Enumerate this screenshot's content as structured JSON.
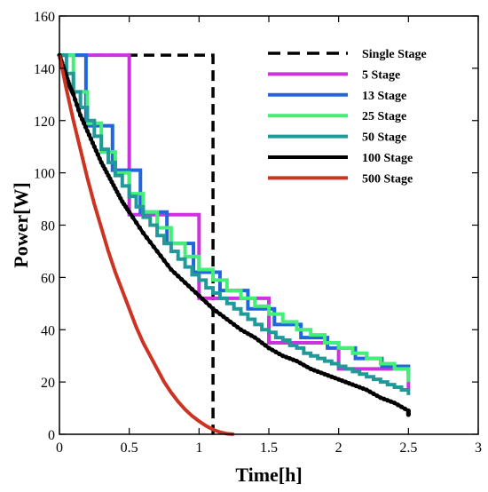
{
  "chart_data": {
    "type": "line",
    "xlabel": "Time[h]",
    "ylabel": "Power[W]",
    "xlim": [
      0,
      3
    ],
    "ylim": [
      0,
      160
    ],
    "xticks": [
      0,
      0.5,
      1,
      1.5,
      2,
      2.5,
      3
    ],
    "xtick_labels": [
      "0",
      "0.5",
      "1",
      "1.5",
      "2",
      "2.5",
      "3"
    ],
    "yticks": [
      0,
      20,
      40,
      60,
      80,
      100,
      120,
      140,
      160
    ],
    "ytick_labels": [
      "0",
      "20",
      "40",
      "60",
      "80",
      "100",
      "120",
      "140",
      "160"
    ],
    "grid": false,
    "legend_position": "top-right",
    "series": [
      {
        "name": "Single Stage",
        "color": "#000000",
        "dash": "dashed",
        "x": [
          0,
          1.1,
          1.1
        ],
        "y": [
          145,
          145,
          0
        ]
      },
      {
        "name": "5 Stage",
        "color": "#cc33dd",
        "x": [
          0,
          0.5,
          0.5,
          1.0,
          1.0,
          1.5,
          1.5,
          2.0,
          2.0,
          2.5,
          2.5
        ],
        "y": [
          145,
          145,
          84,
          84,
          52,
          52,
          35,
          35,
          25,
          25,
          17
        ]
      },
      {
        "name": "13 Stage",
        "color": "#2266dd",
        "x": [
          0,
          0.19,
          0.19,
          0.38,
          0.38,
          0.58,
          0.58,
          0.77,
          0.77,
          0.96,
          0.96,
          1.15,
          1.15,
          1.35,
          1.35,
          1.54,
          1.54,
          1.73,
          1.73,
          1.92,
          1.92,
          2.12,
          2.12,
          2.31,
          2.31,
          2.5,
          2.5
        ],
        "y": [
          145,
          145,
          118,
          118,
          101,
          101,
          85,
          85,
          73,
          73,
          62,
          62,
          55,
          55,
          48,
          48,
          42,
          42,
          37,
          37,
          33,
          33,
          29,
          29,
          26,
          26,
          23
        ]
      },
      {
        "name": "25 Stage",
        "color": "#44ee77",
        "x": [
          0,
          0.1,
          0.1,
          0.2,
          0.2,
          0.3,
          0.3,
          0.4,
          0.4,
          0.5,
          0.5,
          0.6,
          0.6,
          0.7,
          0.7,
          0.8,
          0.8,
          0.9,
          0.9,
          1.0,
          1.0,
          1.1,
          1.1,
          1.2,
          1.2,
          1.3,
          1.3,
          1.4,
          1.4,
          1.5,
          1.5,
          1.6,
          1.6,
          1.7,
          1.7,
          1.8,
          1.8,
          1.9,
          1.9,
          2.0,
          2.0,
          2.1,
          2.1,
          2.2,
          2.2,
          2.3,
          2.3,
          2.4,
          2.4,
          2.5,
          2.5
        ],
        "y": [
          145,
          145,
          131,
          131,
          119,
          119,
          108,
          108,
          100,
          100,
          92,
          92,
          85,
          85,
          79,
          79,
          73,
          73,
          68,
          68,
          63,
          63,
          59,
          59,
          55,
          55,
          52,
          52,
          49,
          49,
          46,
          46,
          43,
          43,
          40,
          40,
          38,
          38,
          35,
          35,
          33,
          33,
          31,
          31,
          29,
          29,
          27,
          27,
          25,
          25,
          20
        ]
      },
      {
        "name": "50 Stage",
        "color": "#229999",
        "x": [
          0,
          0.05,
          0.05,
          0.1,
          0.1,
          0.15,
          0.15,
          0.2,
          0.2,
          0.25,
          0.25,
          0.3,
          0.3,
          0.35,
          0.35,
          0.4,
          0.4,
          0.45,
          0.45,
          0.5,
          0.5,
          0.55,
          0.55,
          0.6,
          0.6,
          0.65,
          0.65,
          0.7,
          0.7,
          0.75,
          0.75,
          0.8,
          0.8,
          0.85,
          0.85,
          0.9,
          0.9,
          0.95,
          0.95,
          1.0,
          1.0,
          1.05,
          1.05,
          1.1,
          1.1,
          1.15,
          1.15,
          1.2,
          1.2,
          1.25,
          1.25,
          1.3,
          1.3,
          1.35,
          1.35,
          1.4,
          1.4,
          1.45,
          1.45,
          1.5,
          1.5,
          1.55,
          1.55,
          1.6,
          1.6,
          1.65,
          1.65,
          1.7,
          1.7,
          1.75,
          1.75,
          1.8,
          1.8,
          1.85,
          1.85,
          1.9,
          1.9,
          1.95,
          1.95,
          2.0,
          2.0,
          2.05,
          2.05,
          2.1,
          2.1,
          2.15,
          2.15,
          2.2,
          2.2,
          2.25,
          2.25,
          2.3,
          2.3,
          2.35,
          2.35,
          2.4,
          2.4,
          2.45,
          2.45,
          2.5,
          2.5
        ],
        "y": [
          145,
          145,
          138,
          138,
          131,
          131,
          125,
          125,
          120,
          120,
          114,
          114,
          109,
          109,
          104,
          104,
          99,
          99,
          95,
          95,
          91,
          91,
          87,
          87,
          83,
          83,
          80,
          80,
          76,
          76,
          73,
          73,
          70,
          70,
          67,
          67,
          64,
          64,
          61,
          61,
          59,
          59,
          56,
          56,
          54,
          54,
          52,
          52,
          50,
          50,
          48,
          48,
          46,
          46,
          44,
          44,
          42,
          42,
          40,
          40,
          39,
          39,
          37,
          37,
          36,
          36,
          34,
          34,
          33,
          33,
          31,
          31,
          30,
          30,
          29,
          29,
          28,
          28,
          27,
          27,
          26,
          26,
          25,
          25,
          24,
          24,
          23,
          23,
          22,
          22,
          21,
          21,
          20,
          20,
          19,
          19,
          18,
          18,
          17,
          17,
          15
        ]
      },
      {
        "name": "100 Stage",
        "color": "#000000",
        "x": [
          0,
          0.025,
          0.05,
          0.075,
          0.1,
          0.15,
          0.2,
          0.25,
          0.3,
          0.35,
          0.4,
          0.45,
          0.5,
          0.6,
          0.7,
          0.8,
          0.9,
          1.0,
          1.1,
          1.2,
          1.3,
          1.4,
          1.5,
          1.6,
          1.7,
          1.8,
          1.9,
          2.0,
          2.1,
          2.2,
          2.3,
          2.4,
          2.5,
          2.5
        ],
        "y": [
          145,
          141,
          137,
          133,
          130,
          122,
          116,
          110,
          104,
          99,
          94,
          89,
          85,
          77,
          70,
          63,
          58,
          53,
          48,
          44,
          40,
          37,
          33,
          30,
          28,
          25,
          23,
          21,
          19,
          17,
          14,
          12,
          9,
          7
        ]
      },
      {
        "name": "500 Stage",
        "color": "#cc3322",
        "x": [
          0,
          0.05,
          0.1,
          0.15,
          0.2,
          0.25,
          0.3,
          0.35,
          0.4,
          0.45,
          0.5,
          0.55,
          0.6,
          0.65,
          0.7,
          0.75,
          0.8,
          0.85,
          0.9,
          0.95,
          1.0,
          1.05,
          1.1,
          1.15,
          1.2,
          1.25
        ],
        "y": [
          145,
          132,
          120,
          109,
          98,
          88,
          79,
          70,
          62,
          55,
          48,
          41,
          35,
          30,
          25,
          20,
          16,
          12.5,
          9.5,
          7,
          5,
          3.2,
          1.8,
          0.8,
          0.2,
          0
        ]
      }
    ]
  }
}
